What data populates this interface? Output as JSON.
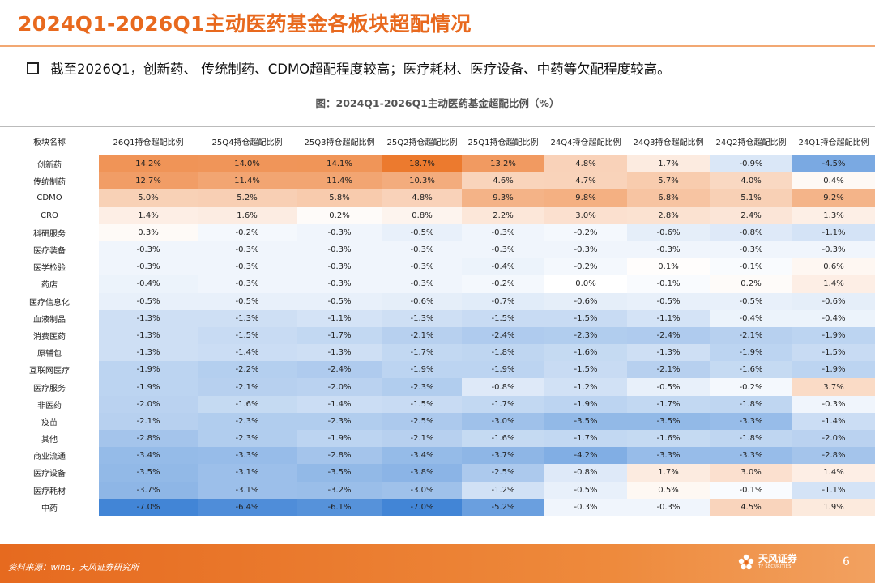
{
  "title": "2024Q1-2026Q1主动医药基金各板块超配情况",
  "bullet": "截至2026Q1，创新药、 传统制药、CDMO超配程度较高；医疗耗材、医疗设备、中药等欠配程度较高。",
  "colors": {
    "accent": "#E8691E",
    "positive": "#EE8133",
    "negative": "#4A86D6"
  },
  "chart_data": {
    "type": "table",
    "title": "图：2024Q1-2026Q1主动医药基金超配比例（%）",
    "header": [
      "板块名称",
      "26Q1持仓超配比例",
      "25Q4持仓超配比例",
      "25Q3持仓超配比例",
      "25Q2持仓超配比例",
      "25Q1持仓超配比例",
      "24Q4持仓超配比例",
      "24Q3持仓超配比例",
      "24Q2持仓超配比例",
      "24Q1持仓超配比例"
    ],
    "rows": [
      {
        "name": "创新药",
        "values": [
          14.2,
          14.0,
          14.1,
          18.7,
          13.2,
          4.8,
          1.7,
          -0.9,
          -4.5
        ]
      },
      {
        "name": "传统制药",
        "values": [
          12.7,
          11.4,
          11.4,
          10.3,
          4.6,
          4.7,
          5.7,
          4.0,
          0.4
        ]
      },
      {
        "name": "CDMO",
        "values": [
          5.0,
          5.2,
          5.8,
          4.8,
          9.3,
          9.8,
          6.8,
          5.1,
          9.2
        ]
      },
      {
        "name": "CRO",
        "values": [
          1.4,
          1.6,
          0.2,
          0.8,
          2.2,
          3.0,
          2.8,
          2.4,
          1.3
        ]
      },
      {
        "name": "科研服务",
        "values": [
          0.3,
          -0.2,
          -0.3,
          -0.5,
          -0.3,
          -0.2,
          -0.6,
          -0.8,
          -1.1
        ]
      },
      {
        "name": "医疗装备",
        "values": [
          -0.3,
          -0.3,
          -0.3,
          -0.3,
          -0.3,
          -0.3,
          -0.3,
          -0.3,
          -0.3
        ]
      },
      {
        "name": "医学检验",
        "values": [
          -0.3,
          -0.3,
          -0.3,
          -0.3,
          -0.4,
          -0.2,
          0.1,
          -0.1,
          0.6
        ]
      },
      {
        "name": "药店",
        "values": [
          -0.4,
          -0.3,
          -0.3,
          -0.3,
          -0.2,
          0.0,
          -0.1,
          0.2,
          1.4
        ]
      },
      {
        "name": "医疗信息化",
        "values": [
          -0.5,
          -0.5,
          -0.5,
          -0.6,
          -0.7,
          -0.6,
          -0.5,
          -0.5,
          -0.6
        ]
      },
      {
        "name": "血液制品",
        "values": [
          -1.3,
          -1.3,
          -1.1,
          -1.3,
          -1.5,
          -1.5,
          -1.1,
          -0.4,
          -0.4
        ]
      },
      {
        "name": "消费医药",
        "values": [
          -1.3,
          -1.5,
          -1.7,
          -2.1,
          -2.4,
          -2.3,
          -2.4,
          -2.1,
          -1.9
        ]
      },
      {
        "name": "原辅包",
        "values": [
          -1.3,
          -1.4,
          -1.3,
          -1.7,
          -1.8,
          -1.6,
          -1.3,
          -1.9,
          -1.5
        ]
      },
      {
        "name": "互联网医疗",
        "values": [
          -1.9,
          -2.2,
          -2.4,
          -1.9,
          -1.9,
          -1.5,
          -2.1,
          -1.6,
          -1.9
        ]
      },
      {
        "name": "医疗服务",
        "values": [
          -1.9,
          -2.1,
          -2.0,
          -2.3,
          -0.8,
          -1.2,
          -0.5,
          -0.2,
          3.7
        ]
      },
      {
        "name": "非医药",
        "values": [
          -2.0,
          -1.6,
          -1.4,
          -1.5,
          -1.7,
          -1.9,
          -1.7,
          -1.8,
          -0.3
        ]
      },
      {
        "name": "疫苗",
        "values": [
          -2.1,
          -2.3,
          -2.3,
          -2.5,
          -3.0,
          -3.5,
          -3.5,
          -3.3,
          -1.4
        ]
      },
      {
        "name": "其他",
        "values": [
          -2.8,
          -2.3,
          -1.9,
          -2.1,
          -1.6,
          -1.7,
          -1.6,
          -1.8,
          -2.0
        ]
      },
      {
        "name": "商业流通",
        "values": [
          -3.4,
          -3.3,
          -2.8,
          -3.4,
          -3.7,
          -4.2,
          -3.3,
          -3.3,
          -2.8
        ]
      },
      {
        "name": "医疗设备",
        "values": [
          -3.5,
          -3.1,
          -3.5,
          -3.8,
          -2.5,
          -0.8,
          1.7,
          3.0,
          1.4
        ]
      },
      {
        "name": "医疗耗材",
        "values": [
          -3.7,
          -3.1,
          -3.2,
          -3.0,
          -1.2,
          -0.5,
          0.5,
          -0.1,
          -1.1
        ]
      },
      {
        "name": "中药",
        "values": [
          -7.0,
          -6.4,
          -6.1,
          -7.0,
          -5.2,
          -0.3,
          -0.3,
          4.5,
          1.9
        ]
      }
    ],
    "unit": "%",
    "color_scale": {
      "max": 18.7,
      "min": -7.0
    }
  },
  "footer": {
    "source": "资料来源：wind，天风证券研究所",
    "logo_cn": "天风证券",
    "logo_en": "TF SECURITIES",
    "page": "6"
  }
}
